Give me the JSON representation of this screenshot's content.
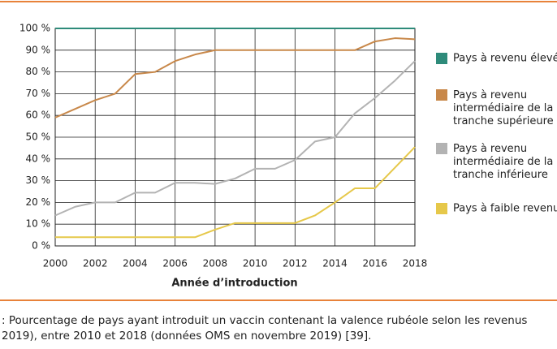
{
  "chart_data": {
    "type": "line",
    "x_label": "Année d’introduction",
    "x": [
      2000,
      2001,
      2002,
      2003,
      2004,
      2005,
      2006,
      2007,
      2008,
      2009,
      2010,
      2011,
      2012,
      2013,
      2014,
      2015,
      2016,
      2017,
      2018
    ],
    "xlim": [
      2000,
      2018
    ],
    "xticks": [
      2000,
      2002,
      2004,
      2006,
      2008,
      2010,
      2012,
      2014,
      2016,
      2018
    ],
    "ylim": [
      0,
      100
    ],
    "yticks": [
      {
        "value": 0,
        "label": "0 %"
      },
      {
        "value": 10,
        "label": "10 %"
      },
      {
        "value": 20,
        "label": "20 %"
      },
      {
        "value": 30,
        "label": "30 %"
      },
      {
        "value": 40,
        "label": "40 %"
      },
      {
        "value": 50,
        "label": "50 %"
      },
      {
        "value": 60,
        "label": "60 %"
      },
      {
        "value": 70,
        "label": "70 %"
      },
      {
        "value": 80,
        "label": "80 %"
      },
      {
        "value": 90,
        "label": "90 %"
      },
      {
        "value": 100,
        "label": "100 %"
      }
    ],
    "grid": true,
    "legend": "right",
    "series": [
      {
        "name": "Pays à revenu élevé",
        "color": "#2e8b7a",
        "values": [
          100,
          100,
          100,
          100,
          100,
          100,
          100,
          100,
          100,
          100,
          100,
          100,
          100,
          100,
          100,
          100,
          100,
          100,
          100
        ]
      },
      {
        "name": "Pays à revenu intermédiaire de la tranche supérieure",
        "color": "#c8884a",
        "values": [
          59,
          63,
          67,
          70,
          79,
          80,
          85,
          88,
          90,
          90,
          90,
          90,
          90,
          90,
          90,
          90,
          94,
          95.5,
          95
        ]
      },
      {
        "name": "Pays à revenu intermédiaire de la tranche inférieure",
        "color": "#b3b3b3",
        "values": [
          14,
          18,
          20,
          20,
          24.5,
          24.5,
          29,
          29,
          28.5,
          31,
          35.5,
          35.5,
          39.5,
          48,
          50,
          61,
          68,
          76,
          85
        ]
      },
      {
        "name": "Pays à faible revenu",
        "color": "#e6c84a",
        "values": [
          4,
          4,
          4,
          4,
          4,
          4,
          4,
          4,
          7.5,
          10.5,
          10.5,
          10.5,
          10.5,
          14,
          20,
          26.5,
          26.5,
          36,
          45.5
        ]
      }
    ]
  },
  "caption": {
    "lines": [
      ": Pourcentage de pays ayant introduit un vaccin contenant la valence rubéole selon les revenus",
      "2019), entre 2010 et 2018 (données OMS en novembre 2019) [39]."
    ]
  }
}
